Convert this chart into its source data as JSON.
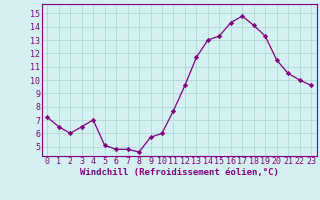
{
  "x": [
    0,
    1,
    2,
    3,
    4,
    5,
    6,
    7,
    8,
    9,
    10,
    11,
    12,
    13,
    14,
    15,
    16,
    17,
    18,
    19,
    20,
    21,
    22,
    23
  ],
  "y": [
    7.2,
    6.5,
    6.0,
    6.5,
    7.0,
    5.1,
    4.8,
    4.8,
    4.6,
    5.7,
    6.0,
    7.7,
    9.6,
    11.7,
    13.0,
    13.3,
    14.3,
    14.8,
    14.1,
    13.3,
    11.5,
    10.5,
    10.0,
    9.6
  ],
  "line_color": "#800080",
  "marker": "D",
  "marker_size": 2.2,
  "bg_color": "#d4f0f0",
  "grid_color": "#b0d8d8",
  "xlabel": "Windchill (Refroidissement éolien,°C)",
  "xlabel_color": "#800080",
  "xlabel_fontsize": 6.5,
  "ytick_labels": [
    "5",
    "6",
    "7",
    "8",
    "9",
    "10",
    "11",
    "12",
    "13",
    "14",
    "15"
  ],
  "ytick_values": [
    5,
    6,
    7,
    8,
    9,
    10,
    11,
    12,
    13,
    14,
    15
  ],
  "xtick_labels": [
    "0",
    "1",
    "2",
    "3",
    "4",
    "5",
    "6",
    "7",
    "8",
    "9",
    "10",
    "11",
    "12",
    "13",
    "14",
    "15",
    "16",
    "17",
    "18",
    "19",
    "20",
    "21",
    "22",
    "23"
  ],
  "ylim": [
    4.3,
    15.7
  ],
  "xlim": [
    -0.5,
    23.5
  ],
  "tick_fontsize": 6.0,
  "tick_color": "#800080",
  "spine_color": "#800080",
  "line_width": 0.9
}
